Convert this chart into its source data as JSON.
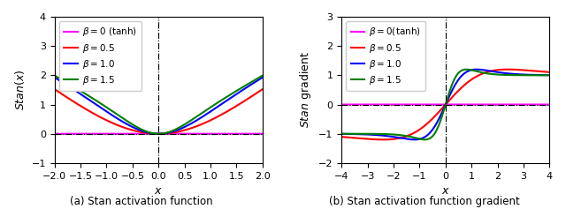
{
  "betas": [
    0,
    0.5,
    1.0,
    1.5
  ],
  "colors": [
    "magenta",
    "red",
    "blue",
    "green"
  ],
  "legend_labels_left": [
    "β = 0 (tanh)",
    "β = 0.5",
    "β = 1.0",
    "β = 1.5"
  ],
  "legend_labels_right": [
    "β = 0(tanh)",
    "β = 0.5",
    "β = 1.0",
    "β = 1.5"
  ],
  "xlim_left": [
    -2.0,
    2.0
  ],
  "ylim_left": [
    -1.0,
    4.0
  ],
  "xlim_right": [
    -4.0,
    4.0
  ],
  "ylim_right": [
    -2.0,
    3.0
  ],
  "caption_left": "(a) Stan activation function",
  "caption_right": "(b) Stan activation function gradient",
  "figsize": [
    6.4,
    2.37
  ],
  "dpi": 100
}
